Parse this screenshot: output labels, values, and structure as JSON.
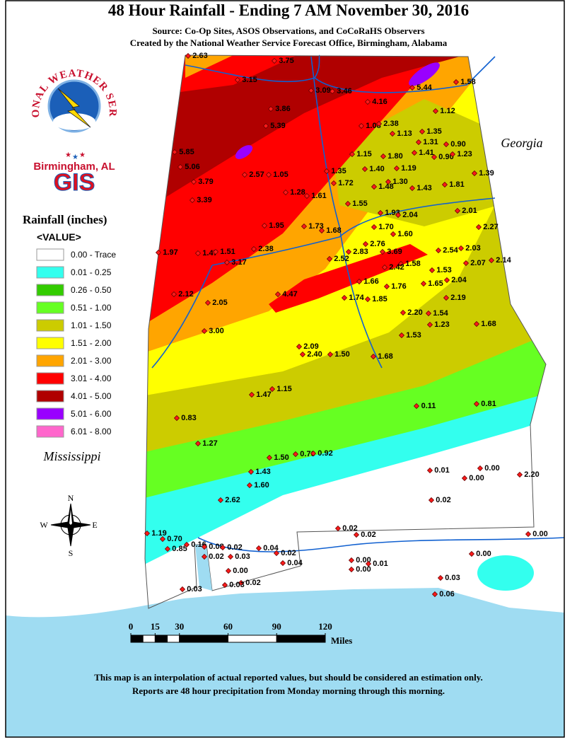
{
  "header": {
    "title": "48 Hour Rainfall - Ending 7 AM November 30, 2016",
    "source": "Source: Co-Op Sites, ASOS Observations, and CoCoRaHS Observers",
    "created": "Created by the National Weather Service Forecast Office, Birmingham, Alabama"
  },
  "logo": {
    "ring_text": "NATIONAL WEATHER SERVICE",
    "office": "Birmingham, AL",
    "gis": "GIS"
  },
  "legend": {
    "title": "Rainfall (inches)",
    "field": "<VALUE>",
    "items": [
      {
        "label": "0.00 - Trace",
        "color": "#ffffff"
      },
      {
        "label": "0.01 - 0.25",
        "color": "#33ffee"
      },
      {
        "label": "0.26 - 0.50",
        "color": "#33cc00"
      },
      {
        "label": "0.51 - 1.00",
        "color": "#66ff22"
      },
      {
        "label": "1.01 - 1.50",
        "color": "#cccc00"
      },
      {
        "label": "1.51 - 2.00",
        "color": "#ffff00"
      },
      {
        "label": "2.01 - 3.00",
        "color": "#ffa500"
      },
      {
        "label": "3.01 - 4.00",
        "color": "#ff0000"
      },
      {
        "label": "4.01 - 5.00",
        "color": "#b00000"
      },
      {
        "label": "5.01 - 6.00",
        "color": "#9900ff"
      },
      {
        "label": "6.01 - 8.00",
        "color": "#ff66cc"
      }
    ]
  },
  "map": {
    "states": [
      "Georgia",
      "Mississippi"
    ],
    "stations": [
      "2.63",
      "3.75",
      "3.15",
      "3.09",
      "3.46",
      "5.44",
      "1.58",
      "4.16",
      "3.86",
      "1.12",
      "5.39",
      "1.08",
      "2.38",
      "1.13",
      "1.35",
      "1.31",
      "0.90",
      "5.85",
      "1.15",
      "1.80",
      "1.41",
      "0.90",
      "1.23",
      "5.06",
      "2.57",
      "1.05",
      "1.35",
      "1.40",
      "1.19",
      "1.39",
      "3.79",
      "1.72",
      "1.48",
      "1.30",
      "1.43",
      "1.81",
      "1.28",
      "1.61",
      "3.39",
      "1.55",
      "2.01",
      "1.93",
      "2.04",
      "1.95",
      "1.73",
      "1.70",
      "1.68",
      "2.27",
      "1.60",
      "1.97",
      "2.76",
      "2.54",
      "2.03",
      "1.47",
      "1.51",
      "2.38",
      "2.83",
      "3.69",
      "2.52",
      "1.58",
      "3.17",
      "2.42",
      "2.07",
      "2.14",
      "1.53",
      "2.04",
      "1.66",
      "1.76",
      "1.65",
      "2.12",
      "4.47",
      "2.05",
      "1.74",
      "1.85",
      "2.19",
      "2.20",
      "1.54",
      "1.68",
      "1.23",
      "3.00",
      "1.53",
      "2.09",
      "2.40",
      "1.50",
      "1.68",
      "1.47",
      "1.15",
      "0.11",
      "0.81",
      "0.83",
      "1.27",
      "0.70",
      "0.92",
      "1.50",
      "1.43",
      "0.01",
      "0.00",
      "2.20",
      "0.00",
      "1.60",
      "2.62",
      "0.02",
      "1.19",
      "0.70",
      "0.85",
      "0.16",
      "0.08",
      "0.02",
      "0.02",
      "0.02",
      "0.00",
      "0.02",
      "0.03",
      "0.04",
      "0.02",
      "0.04",
      "0.00",
      "0.00",
      "0.00",
      "0.01",
      "0.00",
      "0.02",
      "0.03",
      "0.03",
      "0.06",
      "0.03"
    ]
  },
  "compass": {
    "n": "N",
    "s": "S",
    "e": "E",
    "w": "W"
  },
  "scale_bar": {
    "ticks": [
      0,
      15,
      30,
      60,
      90,
      120
    ],
    "unit": "Miles"
  },
  "footer": [
    "This map is an interpolation of actual reported values, but should be considered an estimation only.",
    "Reports are 48 hour precipitation from Monday morning through this morning."
  ]
}
